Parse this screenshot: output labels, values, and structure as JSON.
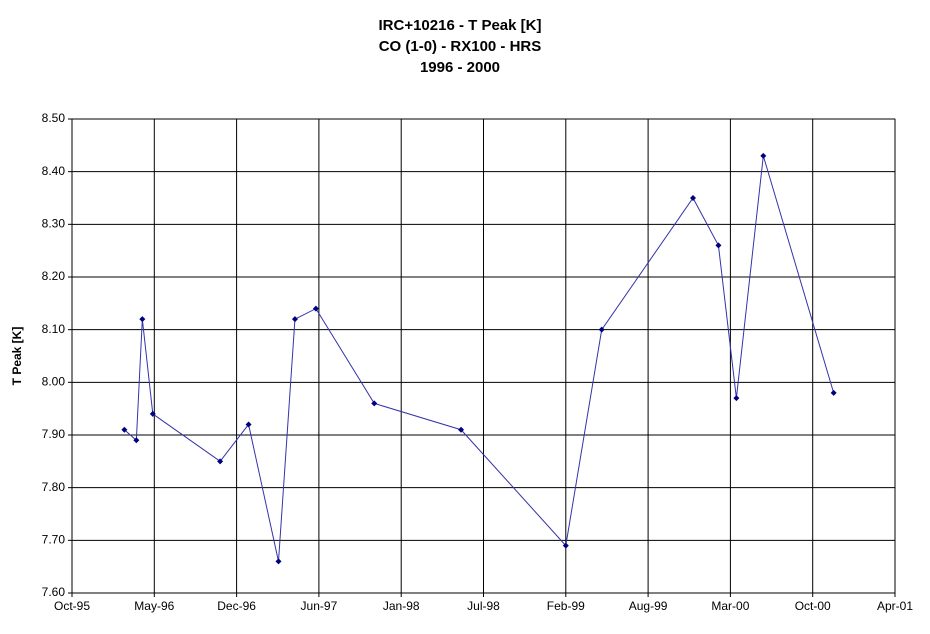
{
  "chart_data": {
    "type": "line",
    "title": [
      "IRC+10216 - T Peak [K]",
      "CO (1-0) - RX100 - HRS",
      "1996 - 2000"
    ],
    "ylabel": "T Peak [K]",
    "x": [
      1996.1,
      1996.18,
      1996.22,
      1996.29,
      1996.74,
      1996.93,
      1997.13,
      1997.24,
      1997.38,
      1997.77,
      1998.35,
      1999.05,
      1999.29,
      1999.9,
      2000.07,
      2000.19,
      2000.37,
      2000.84
    ],
    "series": [
      {
        "name": "T Peak",
        "color": "#3333aa",
        "marker_color": "#000080",
        "values": [
          7.91,
          7.89,
          8.12,
          7.94,
          7.85,
          7.92,
          7.66,
          8.12,
          8.14,
          7.96,
          7.91,
          7.69,
          8.1,
          8.35,
          8.26,
          7.97,
          8.43,
          7.98
        ]
      }
    ],
    "xlim": [
      1995.75,
      2001.25
    ],
    "xticks": [
      {
        "value": 1995.75,
        "label": "Oct-95"
      },
      {
        "value": 1996.3,
        "label": "May-96"
      },
      {
        "value": 1996.85,
        "label": "Dec-96"
      },
      {
        "value": 1997.4,
        "label": "Jun-97"
      },
      {
        "value": 1997.95,
        "label": "Jan-98"
      },
      {
        "value": 1998.5,
        "label": "Jul-98"
      },
      {
        "value": 1999.05,
        "label": "Feb-99"
      },
      {
        "value": 1999.6,
        "label": "Aug-99"
      },
      {
        "value": 2000.15,
        "label": "Mar-00"
      },
      {
        "value": 2000.7,
        "label": "Oct-00"
      },
      {
        "value": 2001.25,
        "label": "Apr-01"
      }
    ],
    "ylim": [
      7.6,
      8.5
    ],
    "yticks": [
      {
        "value": 7.6,
        "label": "7.60"
      },
      {
        "value": 7.7,
        "label": "7.70"
      },
      {
        "value": 7.8,
        "label": "7.80"
      },
      {
        "value": 7.9,
        "label": "7.90"
      },
      {
        "value": 8.0,
        "label": "8.00"
      },
      {
        "value": 8.1,
        "label": "8.10"
      },
      {
        "value": 8.2,
        "label": "8.20"
      },
      {
        "value": 8.3,
        "label": "8.30"
      },
      {
        "value": 8.4,
        "label": "8.40"
      },
      {
        "value": 8.5,
        "label": "8.50"
      }
    ],
    "grid": true
  }
}
